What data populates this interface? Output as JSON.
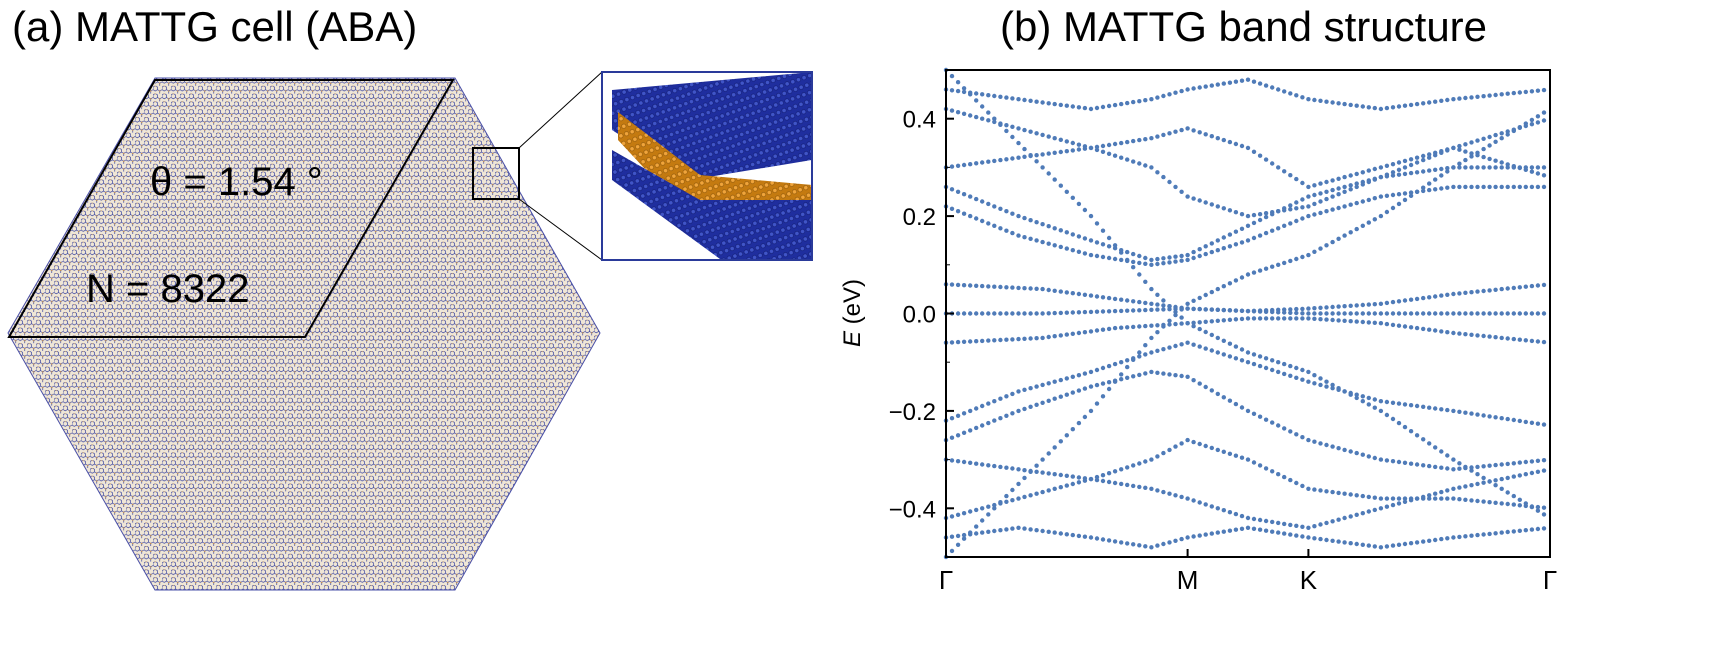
{
  "panel_a": {
    "title": "(a) MATTG cell (ABA)",
    "theta_label": "θ = 1.54 °",
    "n_label": "N = 8322",
    "colors": {
      "lattice_blue": "#23339a",
      "lattice_orange": "#d98a1f",
      "outline": "#000000"
    }
  },
  "panel_b": {
    "title": "(b) MATTG band structure"
  },
  "chart_data": {
    "type": "scatter",
    "title": "(b) MATTG band structure",
    "xlabel": "",
    "ylabel_italic": "E",
    "ylabel_unit": " (eV)",
    "ylim": [
      -0.5,
      0.5
    ],
    "yticks": [
      -0.4,
      -0.2,
      0.0,
      0.2,
      0.4
    ],
    "yticklabels": [
      "−0.4",
      "−0.2",
      "0.0",
      "0.2",
      "0.4"
    ],
    "xticks": [
      {
        "label": "Γ",
        "x": 0.0
      },
      {
        "label": "M",
        "x": 1.0
      },
      {
        "label": "K",
        "x": 1.5
      },
      {
        "label": "Γ",
        "x": 2.5
      }
    ],
    "xlim": [
      0,
      2.5
    ],
    "grid": false,
    "marker_color": "#4f7bb8",
    "series": [
      {
        "x": [
          0.0,
          0.4,
          0.7,
          1.0,
          1.25,
          1.5,
          1.8,
          2.1,
          2.5
        ],
        "y": [
          0.06,
          0.05,
          0.03,
          0.01,
          0.005,
          0.01,
          0.02,
          0.04,
          0.06
        ]
      },
      {
        "x": [
          0.0,
          0.4,
          0.7,
          1.0,
          1.25,
          1.5,
          1.8,
          2.1,
          2.5
        ],
        "y": [
          0.0,
          0.0,
          0.005,
          0.01,
          0.005,
          0.0,
          0.0,
          0.0,
          0.0
        ]
      },
      {
        "x": [
          0.0,
          0.4,
          0.7,
          1.0,
          1.25,
          1.5,
          1.8,
          2.1,
          2.5
        ],
        "y": [
          -0.06,
          -0.05,
          -0.03,
          -0.02,
          -0.01,
          -0.01,
          -0.02,
          -0.04,
          -0.06
        ]
      },
      {
        "x": [
          0.0,
          0.3,
          0.6,
          0.85,
          1.0,
          1.25,
          1.5,
          1.8,
          2.1,
          2.5
        ],
        "y": [
          -0.5,
          -0.35,
          -0.2,
          -0.05,
          0.02,
          0.08,
          0.12,
          0.2,
          0.3,
          0.42
        ]
      },
      {
        "x": [
          0.0,
          0.3,
          0.6,
          0.85,
          1.0,
          1.25,
          1.5,
          1.8,
          2.1,
          2.5
        ],
        "y": [
          0.5,
          0.35,
          0.2,
          0.05,
          -0.02,
          -0.08,
          -0.12,
          -0.2,
          -0.3,
          -0.42
        ]
      },
      {
        "x": [
          0.0,
          0.3,
          0.6,
          0.85,
          1.0,
          1.25,
          1.5,
          1.8,
          2.1,
          2.5
        ],
        "y": [
          -0.22,
          -0.16,
          -0.12,
          -0.08,
          -0.06,
          -0.1,
          -0.14,
          -0.18,
          -0.2,
          -0.23
        ]
      },
      {
        "x": [
          0.0,
          0.3,
          0.6,
          0.85,
          1.0,
          1.25,
          1.5,
          1.8,
          2.1,
          2.5
        ],
        "y": [
          0.22,
          0.16,
          0.12,
          0.1,
          0.11,
          0.15,
          0.2,
          0.24,
          0.26,
          0.26
        ]
      },
      {
        "x": [
          0.0,
          0.3,
          0.6,
          0.85,
          1.0,
          1.25,
          1.5,
          1.8,
          2.1,
          2.5
        ],
        "y": [
          0.26,
          0.2,
          0.15,
          0.11,
          0.12,
          0.18,
          0.24,
          0.28,
          0.3,
          0.3
        ]
      },
      {
        "x": [
          0.0,
          0.3,
          0.6,
          0.85,
          1.0,
          1.25,
          1.5,
          1.8,
          2.1,
          2.5
        ],
        "y": [
          -0.26,
          -0.2,
          -0.15,
          -0.12,
          -0.13,
          -0.2,
          -0.26,
          -0.3,
          -0.32,
          -0.3
        ]
      },
      {
        "x": [
          0.0,
          0.3,
          0.6,
          0.85,
          1.0,
          1.25,
          1.5,
          1.8,
          2.1,
          2.5
        ],
        "y": [
          0.42,
          0.38,
          0.34,
          0.3,
          0.24,
          0.2,
          0.22,
          0.28,
          0.34,
          0.4
        ]
      },
      {
        "x": [
          0.0,
          0.3,
          0.6,
          0.85,
          1.0,
          1.25,
          1.5,
          1.8,
          2.1,
          2.5
        ],
        "y": [
          -0.42,
          -0.38,
          -0.34,
          -0.3,
          -0.26,
          -0.3,
          -0.36,
          -0.38,
          -0.38,
          -0.4
        ]
      },
      {
        "x": [
          0.0,
          0.3,
          0.6,
          0.85,
          1.0,
          1.25,
          1.5,
          1.8,
          2.1,
          2.5
        ],
        "y": [
          0.3,
          0.32,
          0.34,
          0.36,
          0.38,
          0.34,
          0.26,
          0.3,
          0.34,
          0.28
        ]
      },
      {
        "x": [
          0.0,
          0.3,
          0.6,
          0.85,
          1.0,
          1.25,
          1.5,
          1.8,
          2.1,
          2.5
        ],
        "y": [
          -0.3,
          -0.32,
          -0.34,
          -0.36,
          -0.38,
          -0.42,
          -0.44,
          -0.4,
          -0.36,
          -0.32
        ]
      },
      {
        "x": [
          0.0,
          0.3,
          0.6,
          0.85,
          1.0,
          1.25,
          1.5,
          1.8,
          2.1,
          2.5
        ],
        "y": [
          0.46,
          0.44,
          0.42,
          0.44,
          0.46,
          0.48,
          0.44,
          0.42,
          0.44,
          0.46
        ]
      },
      {
        "x": [
          0.0,
          0.3,
          0.6,
          0.85,
          1.0,
          1.25,
          1.5,
          1.8,
          2.1,
          2.5
        ],
        "y": [
          -0.46,
          -0.44,
          -0.46,
          -0.48,
          -0.46,
          -0.44,
          -0.46,
          -0.48,
          -0.46,
          -0.44
        ]
      }
    ]
  }
}
